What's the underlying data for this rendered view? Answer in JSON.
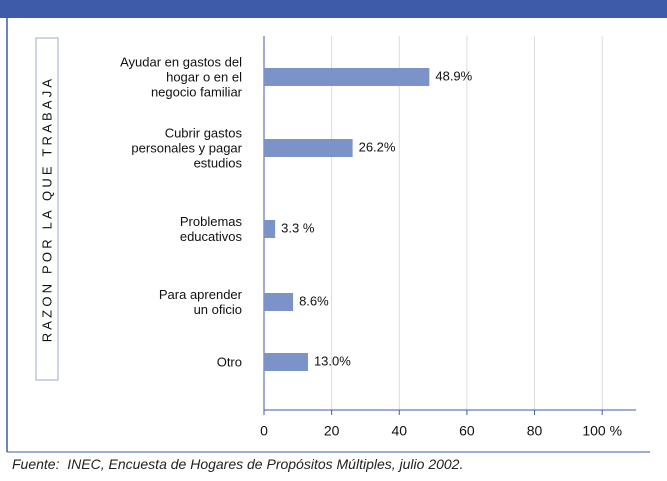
{
  "chart_data": {
    "type": "bar",
    "orientation": "horizontal",
    "y_axis_label": "RAZON POR LA QUE TRABAJA",
    "categories": [
      "Ayudar en gastos del\nhogar o en el\nnegocio familiar",
      "Cubrir gastos\npersonales y pagar\nestudios",
      "Problemas\neducativos",
      "Para aprender\nun oficio",
      "Otro"
    ],
    "values": [
      48.9,
      26.2,
      3.3,
      8.6,
      13.0
    ],
    "value_labels": [
      "48.9%",
      "26.2%",
      "3.3 %",
      "8.6%",
      "13.0%"
    ],
    "color": "#7b93c8",
    "xlim": [
      0,
      110
    ],
    "xticks": [
      0,
      20,
      40,
      60,
      80,
      {
        "value": 100,
        "label": "100 %"
      }
    ],
    "grid": true,
    "source": "Fuente:  INEC, Encuesta de Hogares de Propósitos Múltiples, julio 2002."
  }
}
